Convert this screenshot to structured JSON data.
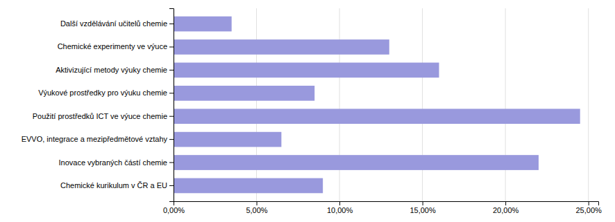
{
  "chart_data": {
    "type": "bar",
    "orientation": "horizontal",
    "categories": [
      "Chemické kurikulum v ČR a EU",
      "Inovace vybraných částí chemie",
      "EVVO, integrace a mezipředmětové vztahy",
      "Použití prostředků ICT ve výuce chemie",
      "Výukové prostředky pro výuku chemie",
      "Aktivizující metody výuky chemie",
      "Chemické experimenty ve výuce",
      "Další vzdělávání učitelů chemie"
    ],
    "values": [
      0.09,
      0.22,
      0.065,
      0.245,
      0.085,
      0.16,
      0.13,
      0.035
    ],
    "color": "#9999dd",
    "xlim": [
      0,
      0.256
    ],
    "xticks": [
      {
        "value": 0.0,
        "label": "0,00%"
      },
      {
        "value": 0.05,
        "label": "5,00%"
      },
      {
        "value": 0.1,
        "label": "10,00%"
      },
      {
        "value": 0.15,
        "label": "15,00%"
      },
      {
        "value": 0.2,
        "label": "20,00%"
      },
      {
        "value": 0.25,
        "label": "25,00%"
      }
    ],
    "grid": true
  }
}
